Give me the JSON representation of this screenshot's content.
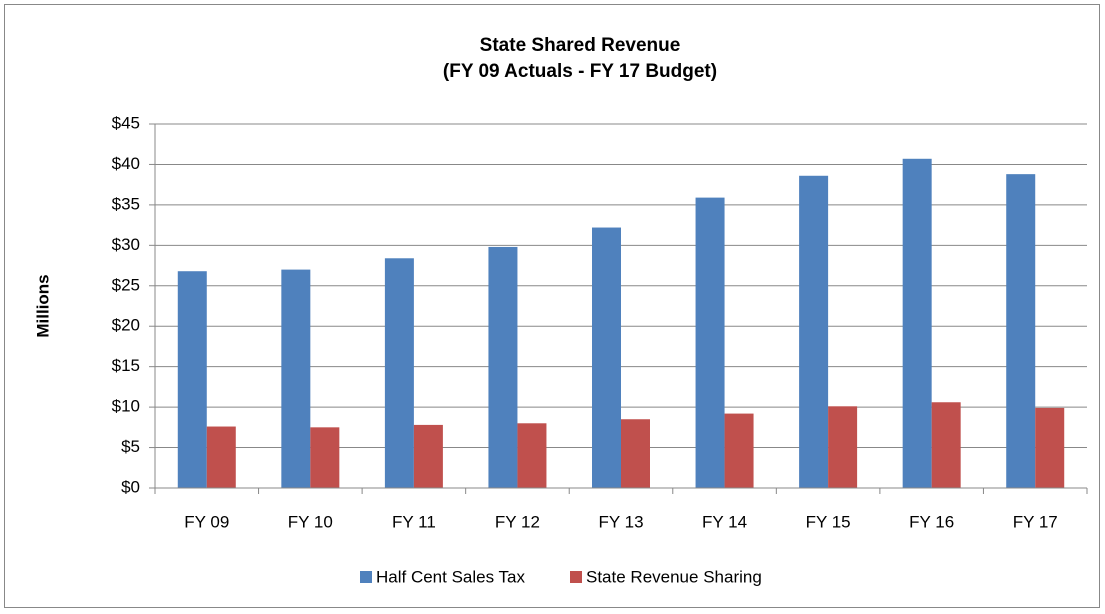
{
  "chart_data": {
    "type": "bar",
    "title": "State Shared Revenue",
    "subtitle": "(FY 09 Actuals - FY 17 Budget)",
    "y_label": "Millions",
    "categories": [
      "FY 09",
      "FY 10",
      "FY 11",
      "FY 12",
      "FY 13",
      "FY 14",
      "FY 15",
      "FY 16",
      "FY 17"
    ],
    "series": [
      {
        "name": "Half Cent Sales Tax",
        "color": "#4f81bd",
        "values": [
          26.8,
          27.0,
          28.4,
          29.8,
          32.2,
          35.9,
          38.6,
          40.7,
          38.8
        ]
      },
      {
        "name": "State Revenue Sharing",
        "color": "#c0504d",
        "values": [
          7.6,
          7.5,
          7.8,
          8.0,
          8.5,
          9.2,
          10.1,
          10.6,
          9.9
        ]
      }
    ],
    "ylim": [
      0,
      45
    ],
    "yticks": [
      {
        "value": 0,
        "label": "$0"
      },
      {
        "value": 5,
        "label": "$5"
      },
      {
        "value": 10,
        "label": "$10"
      },
      {
        "value": 15,
        "label": "$15"
      },
      {
        "value": 20,
        "label": "$20"
      },
      {
        "value": 25,
        "label": "$25"
      },
      {
        "value": 30,
        "label": "$30"
      },
      {
        "value": 35,
        "label": "$35"
      },
      {
        "value": 40,
        "label": "$40"
      },
      {
        "value": 45,
        "label": "$45"
      }
    ],
    "grid": true,
    "legend": "bottom"
  }
}
